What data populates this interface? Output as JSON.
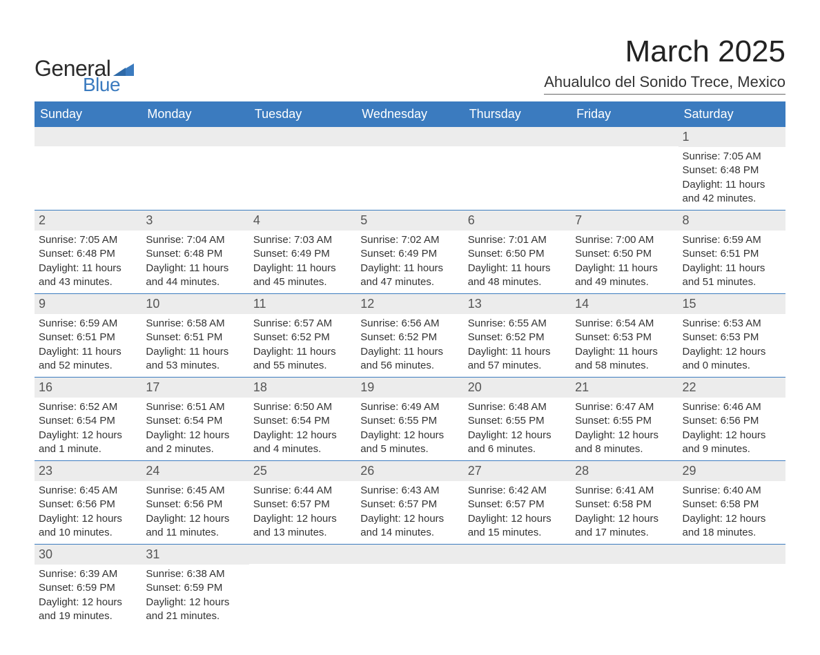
{
  "colors": {
    "header_bg": "#3b7bbf",
    "header_text": "#ffffff",
    "daynum_bg": "#ececec",
    "daynum_text": "#555555",
    "body_text": "#333333",
    "row_border": "#3b7bbf",
    "title_text": "#222222",
    "logo_general": "#2b2b2b",
    "logo_blue": "#3b7bbf"
  },
  "logo": {
    "general": "General",
    "blue": "Blue"
  },
  "title": "March 2025",
  "location": "Ahualulco del Sonido Trece, Mexico",
  "day_headers": [
    "Sunday",
    "Monday",
    "Tuesday",
    "Wednesday",
    "Thursday",
    "Friday",
    "Saturday"
  ],
  "weeks": [
    [
      {
        "blank": true
      },
      {
        "blank": true
      },
      {
        "blank": true
      },
      {
        "blank": true
      },
      {
        "blank": true
      },
      {
        "blank": true
      },
      {
        "n": "1",
        "sunrise": "Sunrise: 7:05 AM",
        "sunset": "Sunset: 6:48 PM",
        "d1": "Daylight: 11 hours",
        "d2": "and 42 minutes."
      }
    ],
    [
      {
        "n": "2",
        "sunrise": "Sunrise: 7:05 AM",
        "sunset": "Sunset: 6:48 PM",
        "d1": "Daylight: 11 hours",
        "d2": "and 43 minutes."
      },
      {
        "n": "3",
        "sunrise": "Sunrise: 7:04 AM",
        "sunset": "Sunset: 6:48 PM",
        "d1": "Daylight: 11 hours",
        "d2": "and 44 minutes."
      },
      {
        "n": "4",
        "sunrise": "Sunrise: 7:03 AM",
        "sunset": "Sunset: 6:49 PM",
        "d1": "Daylight: 11 hours",
        "d2": "and 45 minutes."
      },
      {
        "n": "5",
        "sunrise": "Sunrise: 7:02 AM",
        "sunset": "Sunset: 6:49 PM",
        "d1": "Daylight: 11 hours",
        "d2": "and 47 minutes."
      },
      {
        "n": "6",
        "sunrise": "Sunrise: 7:01 AM",
        "sunset": "Sunset: 6:50 PM",
        "d1": "Daylight: 11 hours",
        "d2": "and 48 minutes."
      },
      {
        "n": "7",
        "sunrise": "Sunrise: 7:00 AM",
        "sunset": "Sunset: 6:50 PM",
        "d1": "Daylight: 11 hours",
        "d2": "and 49 minutes."
      },
      {
        "n": "8",
        "sunrise": "Sunrise: 6:59 AM",
        "sunset": "Sunset: 6:51 PM",
        "d1": "Daylight: 11 hours",
        "d2": "and 51 minutes."
      }
    ],
    [
      {
        "n": "9",
        "sunrise": "Sunrise: 6:59 AM",
        "sunset": "Sunset: 6:51 PM",
        "d1": "Daylight: 11 hours",
        "d2": "and 52 minutes."
      },
      {
        "n": "10",
        "sunrise": "Sunrise: 6:58 AM",
        "sunset": "Sunset: 6:51 PM",
        "d1": "Daylight: 11 hours",
        "d2": "and 53 minutes."
      },
      {
        "n": "11",
        "sunrise": "Sunrise: 6:57 AM",
        "sunset": "Sunset: 6:52 PM",
        "d1": "Daylight: 11 hours",
        "d2": "and 55 minutes."
      },
      {
        "n": "12",
        "sunrise": "Sunrise: 6:56 AM",
        "sunset": "Sunset: 6:52 PM",
        "d1": "Daylight: 11 hours",
        "d2": "and 56 minutes."
      },
      {
        "n": "13",
        "sunrise": "Sunrise: 6:55 AM",
        "sunset": "Sunset: 6:52 PM",
        "d1": "Daylight: 11 hours",
        "d2": "and 57 minutes."
      },
      {
        "n": "14",
        "sunrise": "Sunrise: 6:54 AM",
        "sunset": "Sunset: 6:53 PM",
        "d1": "Daylight: 11 hours",
        "d2": "and 58 minutes."
      },
      {
        "n": "15",
        "sunrise": "Sunrise: 6:53 AM",
        "sunset": "Sunset: 6:53 PM",
        "d1": "Daylight: 12 hours",
        "d2": "and 0 minutes."
      }
    ],
    [
      {
        "n": "16",
        "sunrise": "Sunrise: 6:52 AM",
        "sunset": "Sunset: 6:54 PM",
        "d1": "Daylight: 12 hours",
        "d2": "and 1 minute."
      },
      {
        "n": "17",
        "sunrise": "Sunrise: 6:51 AM",
        "sunset": "Sunset: 6:54 PM",
        "d1": "Daylight: 12 hours",
        "d2": "and 2 minutes."
      },
      {
        "n": "18",
        "sunrise": "Sunrise: 6:50 AM",
        "sunset": "Sunset: 6:54 PM",
        "d1": "Daylight: 12 hours",
        "d2": "and 4 minutes."
      },
      {
        "n": "19",
        "sunrise": "Sunrise: 6:49 AM",
        "sunset": "Sunset: 6:55 PM",
        "d1": "Daylight: 12 hours",
        "d2": "and 5 minutes."
      },
      {
        "n": "20",
        "sunrise": "Sunrise: 6:48 AM",
        "sunset": "Sunset: 6:55 PM",
        "d1": "Daylight: 12 hours",
        "d2": "and 6 minutes."
      },
      {
        "n": "21",
        "sunrise": "Sunrise: 6:47 AM",
        "sunset": "Sunset: 6:55 PM",
        "d1": "Daylight: 12 hours",
        "d2": "and 8 minutes."
      },
      {
        "n": "22",
        "sunrise": "Sunrise: 6:46 AM",
        "sunset": "Sunset: 6:56 PM",
        "d1": "Daylight: 12 hours",
        "d2": "and 9 minutes."
      }
    ],
    [
      {
        "n": "23",
        "sunrise": "Sunrise: 6:45 AM",
        "sunset": "Sunset: 6:56 PM",
        "d1": "Daylight: 12 hours",
        "d2": "and 10 minutes."
      },
      {
        "n": "24",
        "sunrise": "Sunrise: 6:45 AM",
        "sunset": "Sunset: 6:56 PM",
        "d1": "Daylight: 12 hours",
        "d2": "and 11 minutes."
      },
      {
        "n": "25",
        "sunrise": "Sunrise: 6:44 AM",
        "sunset": "Sunset: 6:57 PM",
        "d1": "Daylight: 12 hours",
        "d2": "and 13 minutes."
      },
      {
        "n": "26",
        "sunrise": "Sunrise: 6:43 AM",
        "sunset": "Sunset: 6:57 PM",
        "d1": "Daylight: 12 hours",
        "d2": "and 14 minutes."
      },
      {
        "n": "27",
        "sunrise": "Sunrise: 6:42 AM",
        "sunset": "Sunset: 6:57 PM",
        "d1": "Daylight: 12 hours",
        "d2": "and 15 minutes."
      },
      {
        "n": "28",
        "sunrise": "Sunrise: 6:41 AM",
        "sunset": "Sunset: 6:58 PM",
        "d1": "Daylight: 12 hours",
        "d2": "and 17 minutes."
      },
      {
        "n": "29",
        "sunrise": "Sunrise: 6:40 AM",
        "sunset": "Sunset: 6:58 PM",
        "d1": "Daylight: 12 hours",
        "d2": "and 18 minutes."
      }
    ],
    [
      {
        "n": "30",
        "sunrise": "Sunrise: 6:39 AM",
        "sunset": "Sunset: 6:59 PM",
        "d1": "Daylight: 12 hours",
        "d2": "and 19 minutes."
      },
      {
        "n": "31",
        "sunrise": "Sunrise: 6:38 AM",
        "sunset": "Sunset: 6:59 PM",
        "d1": "Daylight: 12 hours",
        "d2": "and 21 minutes."
      },
      {
        "blank": true
      },
      {
        "blank": true
      },
      {
        "blank": true
      },
      {
        "blank": true
      },
      {
        "blank": true
      }
    ]
  ]
}
